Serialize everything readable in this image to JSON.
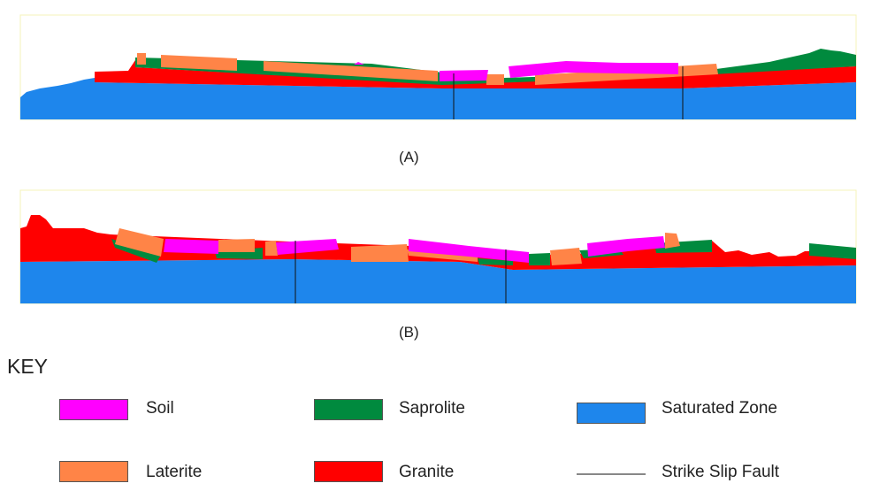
{
  "panels": [
    {
      "caption": "(A)"
    },
    {
      "caption": "(B)"
    }
  ],
  "key": {
    "title": "KEY",
    "items": [
      {
        "label": "Soil",
        "color": "#ff00ff"
      },
      {
        "label": "Saprolite",
        "color": "#008a3e"
      },
      {
        "label": "Saturated Zone",
        "color": "#1e86ec"
      },
      {
        "label": "Laterite",
        "color": "#ff8447"
      },
      {
        "label": "Granite",
        "color": "#ff0000"
      },
      {
        "label": "Strike Slip Fault",
        "color": "#000000"
      }
    ]
  }
}
